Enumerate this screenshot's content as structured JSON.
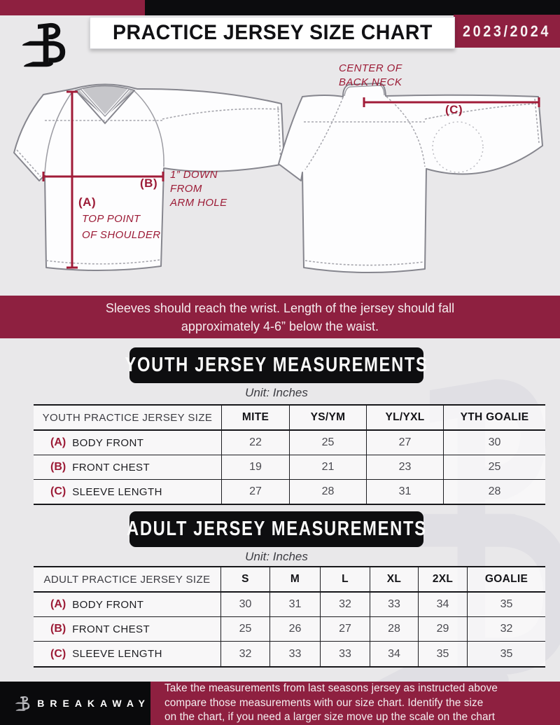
{
  "colors": {
    "maroon": "#8e2040",
    "annotation_maroon": "#9c1b36",
    "black": "#0c0c0e",
    "page_background": "#e9e8ea"
  },
  "header": {
    "title": "PRACTICE JERSEY SIZE CHART",
    "season": "2023/2024",
    "logo": "breakaway-b-logo"
  },
  "diagram": {
    "front": {
      "a_marker": "(A)",
      "a_note": "TOP POINT\nOF SHOULDER",
      "b_marker": "(B)",
      "b_note": "1” DOWN\nFROM\nARM HOLE"
    },
    "back": {
      "c_marker": "(C)",
      "neck_note": "CENTER OF\nBACK NECK"
    }
  },
  "notice": "Sleeves should reach the wrist. Length of the jersey should fall\napproximately 4-6” below the waist.",
  "youth": {
    "heading": "YOUTH JERSEY MEASUREMENTS",
    "unit": "Unit: Inches"
  },
  "adult": {
    "heading": "ADULT JERSEY MEASUREMENTS",
    "unit": "Unit: Inches"
  },
  "youth_table": {
    "label_header": "YOUTH PRACTICE JERSEY SIZE",
    "size_headers": [
      "MITE",
      "YS/YM",
      "YL/YXL",
      "YTH GOALIE"
    ],
    "rows": [
      {
        "key": "(A)",
        "label": "BODY FRONT",
        "values": [
          "22",
          "25",
          "27",
          "30"
        ]
      },
      {
        "key": "(B)",
        "label": "FRONT CHEST",
        "values": [
          "19",
          "21",
          "23",
          "25"
        ]
      },
      {
        "key": "(C)",
        "label": "SLEEVE LENGTH",
        "values": [
          "27",
          "28",
          "31",
          "28"
        ]
      }
    ]
  },
  "adult_table": {
    "label_header": "ADULT PRACTICE JERSEY SIZE",
    "size_headers": [
      "S",
      "M",
      "L",
      "XL",
      "2XL",
      "GOALIE"
    ],
    "rows": [
      {
        "key": "(A)",
        "label": "BODY FRONT",
        "values": [
          "30",
          "31",
          "32",
          "33",
          "34",
          "35"
        ]
      },
      {
        "key": "(B)",
        "label": "FRONT CHEST",
        "values": [
          "25",
          "26",
          "27",
          "28",
          "29",
          "32"
        ]
      },
      {
        "key": "(C)",
        "label": "SLEEVE LENGTH",
        "values": [
          "32",
          "33",
          "33",
          "34",
          "35",
          "35"
        ]
      }
    ]
  },
  "footer": {
    "brand": "BREAKAWAY",
    "note": "Take the measurements from last seasons jersey as instructed above\ncompare those measurements  with our size chart. Identify the size\non the chart, if you need a larger size move up the scale on the chart"
  }
}
